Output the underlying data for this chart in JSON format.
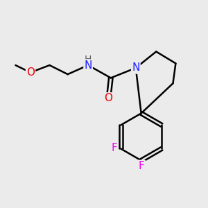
{
  "background_color": "#ebebeb",
  "atom_colors": {
    "C": "#000000",
    "N": "#2020ff",
    "O": "#ee0000",
    "F": "#ee00ee",
    "H": "#606060"
  },
  "bond_color": "#000000",
  "bond_width": 1.8,
  "figsize": [
    3.0,
    3.0
  ],
  "dpi": 100,
  "font_size": 11
}
